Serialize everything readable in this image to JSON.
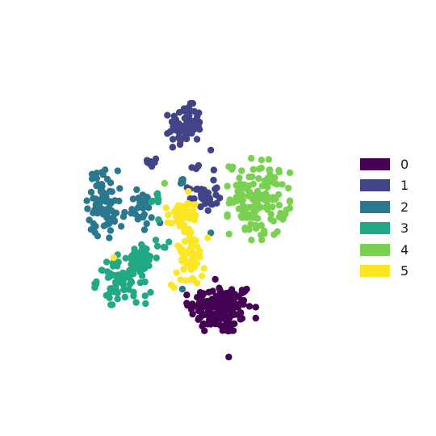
{
  "chart_data": {
    "type": "scatter",
    "title": "",
    "xlabel": "",
    "ylabel": "",
    "axes_visible": false,
    "grid": false,
    "legend_placement": "right",
    "xlim": [
      -10,
      10
    ],
    "ylim": [
      -10,
      10
    ],
    "colors": {
      "0": "#440154",
      "1": "#414487",
      "2": "#2a788e",
      "3": "#22a884",
      "4": "#7ad151",
      "5": "#fde725"
    },
    "series": [
      {
        "name": "0",
        "clusters": [
          {
            "cx": 1.3,
            "cy": -5.5,
            "sx": 1.05,
            "sy": 0.75,
            "n": 150
          },
          {
            "cx": 0.0,
            "cy": -4.7,
            "sx": 0.2,
            "sy": 0.2,
            "n": 4
          },
          {
            "cx": 1.6,
            "cy": -6.7,
            "sx": 0.2,
            "sy": 0.2,
            "n": 4
          }
        ],
        "points": [
          [
            1.8,
            -8.4
          ],
          [
            3.0,
            -4.3
          ],
          [
            0.9,
            -3.7
          ]
        ]
      },
      {
        "name": "1",
        "clusters": [
          {
            "cx": -1.1,
            "cy": 5.6,
            "sx": 0.55,
            "sy": 0.6,
            "n": 85
          },
          {
            "cx": 0.1,
            "cy": 1.3,
            "sx": 0.5,
            "sy": 0.45,
            "n": 32
          },
          {
            "cx": -3.2,
            "cy": 3.4,
            "sx": 0.22,
            "sy": 0.18,
            "n": 10
          },
          {
            "cx": -0.4,
            "cy": 3.1,
            "sx": 0.15,
            "sy": 0.15,
            "n": 4
          }
        ],
        "points": [
          [
            0.8,
            2.9
          ],
          [
            -1.2,
            6.6
          ],
          [
            0.6,
            4.1
          ]
        ]
      },
      {
        "name": "2",
        "clusters": [
          {
            "cx": -6.6,
            "cy": 1.0,
            "sx": 0.5,
            "sy": 0.95,
            "n": 75
          },
          {
            "cx": -4.3,
            "cy": 0.5,
            "sx": 0.5,
            "sy": 0.55,
            "n": 30
          },
          {
            "cx": -1.4,
            "cy": 2.2,
            "sx": 0.2,
            "sy": 0.1,
            "n": 5
          }
        ],
        "points": [
          [
            -5.4,
            -0.5
          ],
          [
            -6.2,
            -1.2
          ],
          [
            0.6,
            -0.9
          ],
          [
            -1.3,
            -4.3
          ],
          [
            -2.8,
            -0.3
          ]
        ]
      },
      {
        "name": "3",
        "clusters": [
          {
            "cx": -5.3,
            "cy": -3.7,
            "sx": 0.85,
            "sy": 0.7,
            "n": 85
          },
          {
            "cx": -4.0,
            "cy": -2.5,
            "sx": 0.5,
            "sy": 0.45,
            "n": 30
          },
          {
            "cx": -3.0,
            "cy": 1.2,
            "sx": 0.18,
            "sy": 0.22,
            "n": 8
          },
          {
            "cx": -2.5,
            "cy": -1.6,
            "sx": 0.35,
            "sy": 0.15,
            "n": 5
          }
        ],
        "points": [
          [
            -4.4,
            -5.1
          ],
          [
            -3.8,
            -4.7
          ],
          [
            -4.7,
            -2.3
          ],
          [
            -2.9,
            -0.1
          ]
        ]
      },
      {
        "name": "4",
        "clusters": [
          {
            "cx": 3.8,
            "cy": 1.2,
            "sx": 0.95,
            "sy": 1.15,
            "n": 130
          }
        ],
        "points": [
          [
            -2.5,
            2.1
          ],
          [
            2.6,
            1.1
          ],
          [
            4.5,
            2.3
          ]
        ]
      },
      {
        "name": "5",
        "clusters": [
          {
            "cx": -1.4,
            "cy": 0.1,
            "sx": 0.45,
            "sy": 0.45,
            "n": 45
          },
          {
            "cx": -0.9,
            "cy": -2.2,
            "sx": 0.55,
            "sy": 0.95,
            "n": 60
          }
        ],
        "points": [
          [
            -5.9,
            -2.4
          ],
          [
            -0.9,
            1.6
          ],
          [
            0.0,
            -3.5
          ],
          [
            0.4,
            -1.2
          ],
          [
            -1.7,
            -3.3
          ]
        ]
      }
    ]
  }
}
